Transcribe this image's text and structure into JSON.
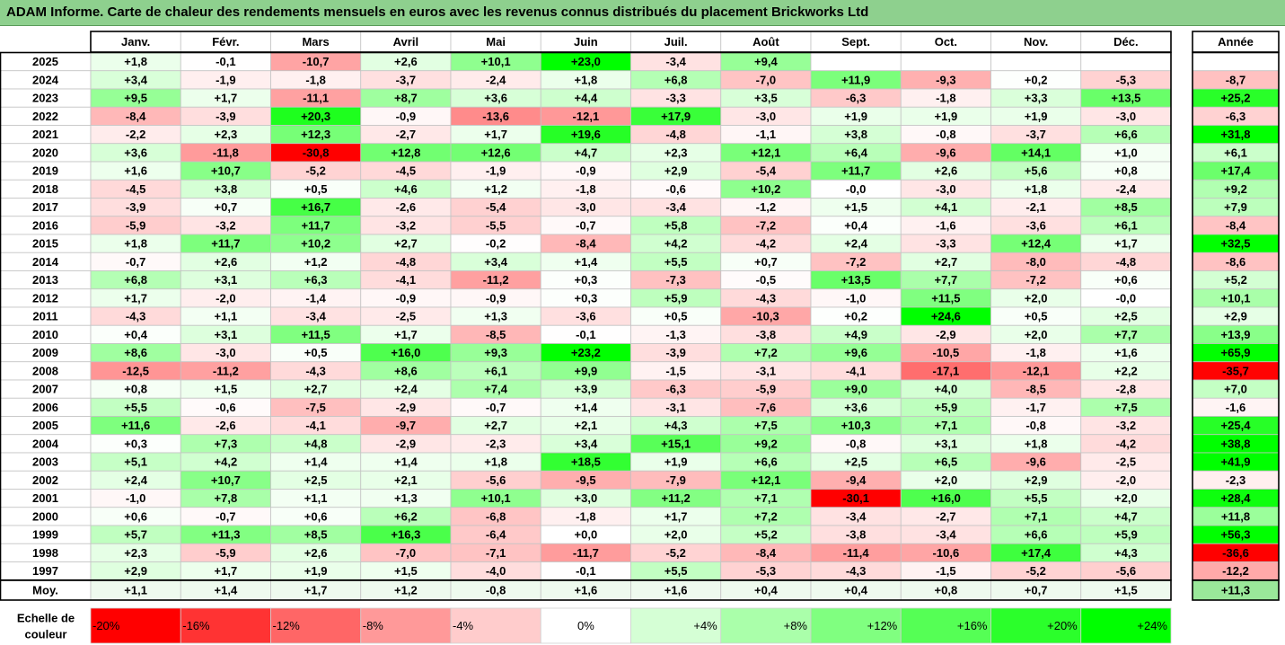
{
  "title": "ADAM Informe. Carte de chaleur des rendements mensuels en euros avec les revenus connus distribués du placement Brickworks Ltd",
  "chart_data": {
    "type": "heatmap",
    "months": [
      "Janv.",
      "Févr.",
      "Mars",
      "Avril",
      "Mai",
      "Juin",
      "Juil.",
      "Août",
      "Sept.",
      "Oct.",
      "Nov.",
      "Déc."
    ],
    "annual_header": "Année",
    "rows": [
      {
        "year": "2025",
        "values": [
          "+1,8",
          "-0,1",
          "-10,7",
          "+2,6",
          "+10,1",
          "+23,0",
          "-3,4",
          "+9,4",
          "",
          "",
          "",
          ""
        ],
        "annual": ""
      },
      {
        "year": "2024",
        "values": [
          "+3,4",
          "-1,9",
          "-1,8",
          "-3,7",
          "-2,4",
          "+1,8",
          "+6,8",
          "-7,0",
          "+11,9",
          "-9,3",
          "+0,2",
          "-5,3"
        ],
        "annual": "-8,7"
      },
      {
        "year": "2023",
        "values": [
          "+9,5",
          "+1,7",
          "-11,1",
          "+8,7",
          "+3,6",
          "+4,4",
          "-3,3",
          "+3,5",
          "-6,3",
          "-1,8",
          "+3,3",
          "+13,5"
        ],
        "annual": "+25,2"
      },
      {
        "year": "2022",
        "values": [
          "-8,4",
          "-3,9",
          "+20,3",
          "-0,9",
          "-13,6",
          "-12,1",
          "+17,9",
          "-3,0",
          "+1,9",
          "+1,9",
          "+1,9",
          "-3,0"
        ],
        "annual": "-6,3"
      },
      {
        "year": "2021",
        "values": [
          "-2,2",
          "+2,3",
          "+12,3",
          "-2,7",
          "+1,7",
          "+19,6",
          "-4,8",
          "-1,1",
          "+3,8",
          "-0,8",
          "-3,7",
          "+6,6"
        ],
        "annual": "+31,8"
      },
      {
        "year": "2020",
        "values": [
          "+3,6",
          "-11,8",
          "-30,8",
          "+12,8",
          "+12,6",
          "+4,7",
          "+2,3",
          "+12,1",
          "+6,4",
          "-9,6",
          "+14,1",
          "+1,0"
        ],
        "annual": "+6,1"
      },
      {
        "year": "2019",
        "values": [
          "+1,6",
          "+10,7",
          "-5,2",
          "-4,5",
          "-1,9",
          "-0,9",
          "+2,9",
          "-5,4",
          "+11,7",
          "+2,6",
          "+5,6",
          "+0,8"
        ],
        "annual": "+17,4"
      },
      {
        "year": "2018",
        "values": [
          "-4,5",
          "+3,8",
          "+0,5",
          "+4,6",
          "+1,2",
          "-1,8",
          "-0,6",
          "+10,2",
          "-0,0",
          "-3,0",
          "+1,8",
          "-2,4"
        ],
        "annual": "+9,2"
      },
      {
        "year": "2017",
        "values": [
          "-3,9",
          "+0,7",
          "+16,7",
          "-2,6",
          "-5,4",
          "-3,0",
          "-3,4",
          "-1,2",
          "+1,5",
          "+4,1",
          "-2,1",
          "+8,5"
        ],
        "annual": "+7,9"
      },
      {
        "year": "2016",
        "values": [
          "-5,9",
          "-3,2",
          "+11,7",
          "-3,2",
          "-5,5",
          "-0,7",
          "+5,8",
          "-7,2",
          "+0,4",
          "-1,6",
          "-3,6",
          "+6,1"
        ],
        "annual": "-8,4"
      },
      {
        "year": "2015",
        "values": [
          "+1,8",
          "+11,7",
          "+10,2",
          "+2,7",
          "-0,2",
          "-8,4",
          "+4,2",
          "-4,2",
          "+2,4",
          "-3,3",
          "+12,4",
          "+1,7"
        ],
        "annual": "+32,5"
      },
      {
        "year": "2014",
        "values": [
          "-0,7",
          "+2,6",
          "+1,2",
          "-4,8",
          "+3,4",
          "+1,4",
          "+5,5",
          "+0,7",
          "-7,2",
          "+2,7",
          "-8,0",
          "-4,8"
        ],
        "annual": "-8,6"
      },
      {
        "year": "2013",
        "values": [
          "+6,8",
          "+3,1",
          "+6,3",
          "-4,1",
          "-11,2",
          "+0,3",
          "-7,3",
          "-0,5",
          "+13,5",
          "+7,7",
          "-7,2",
          "+0,6"
        ],
        "annual": "+5,2"
      },
      {
        "year": "2012",
        "values": [
          "+1,7",
          "-2,0",
          "-1,4",
          "-0,9",
          "-0,9",
          "+0,3",
          "+5,9",
          "-4,3",
          "-1,0",
          "+11,5",
          "+2,0",
          "-0,0"
        ],
        "annual": "+10,1"
      },
      {
        "year": "2011",
        "values": [
          "-4,3",
          "+1,1",
          "-3,4",
          "-2,5",
          "+1,3",
          "-3,6",
          "+0,5",
          "-10,3",
          "+0,2",
          "+24,6",
          "+0,5",
          "+2,5"
        ],
        "annual": "+2,9"
      },
      {
        "year": "2010",
        "values": [
          "+0,4",
          "+3,1",
          "+11,5",
          "+1,7",
          "-8,5",
          "-0,1",
          "-1,3",
          "-3,8",
          "+4,9",
          "-2,9",
          "+2,0",
          "+7,7"
        ],
        "annual": "+13,9"
      },
      {
        "year": "2009",
        "values": [
          "+8,6",
          "-3,0",
          "+0,5",
          "+16,0",
          "+9,3",
          "+23,2",
          "-3,9",
          "+7,2",
          "+9,6",
          "-10,5",
          "-1,8",
          "+1,6"
        ],
        "annual": "+65,9"
      },
      {
        "year": "2008",
        "values": [
          "-12,5",
          "-11,2",
          "-4,3",
          "+8,6",
          "+6,1",
          "+9,9",
          "-1,5",
          "-3,1",
          "-4,1",
          "-17,1",
          "-12,1",
          "+2,2"
        ],
        "annual": "-35,7"
      },
      {
        "year": "2007",
        "values": [
          "+0,8",
          "+1,5",
          "+2,7",
          "+2,4",
          "+7,4",
          "+3,9",
          "-6,3",
          "-5,9",
          "+9,0",
          "+4,0",
          "-8,5",
          "-2,8"
        ],
        "annual": "+7,0"
      },
      {
        "year": "2006",
        "values": [
          "+5,5",
          "-0,6",
          "-7,5",
          "-2,9",
          "-0,7",
          "+1,4",
          "-3,1",
          "-7,6",
          "+3,6",
          "+5,9",
          "-1,7",
          "+7,5"
        ],
        "annual": "-1,6"
      },
      {
        "year": "2005",
        "values": [
          "+11,6",
          "-2,6",
          "-4,1",
          "-9,7",
          "+2,7",
          "+2,1",
          "+4,3",
          "+7,5",
          "+10,3",
          "+7,1",
          "-0,8",
          "-3,2"
        ],
        "annual": "+25,4"
      },
      {
        "year": "2004",
        "values": [
          "+0,3",
          "+7,3",
          "+4,8",
          "-2,9",
          "-2,3",
          "+3,4",
          "+15,1",
          "+9,2",
          "-0,8",
          "+3,1",
          "+1,8",
          "-4,2"
        ],
        "annual": "+38,8"
      },
      {
        "year": "2003",
        "values": [
          "+5,1",
          "+4,2",
          "+1,4",
          "+1,4",
          "+1,8",
          "+18,5",
          "+1,9",
          "+6,6",
          "+2,5",
          "+6,5",
          "-9,6",
          "-2,5"
        ],
        "annual": "+41,9"
      },
      {
        "year": "2002",
        "values": [
          "+2,4",
          "+10,7",
          "+2,5",
          "+2,1",
          "-5,6",
          "-9,5",
          "-7,9",
          "+12,1",
          "-9,4",
          "+2,0",
          "+2,9",
          "-2,0"
        ],
        "annual": "-2,3"
      },
      {
        "year": "2001",
        "values": [
          "-1,0",
          "+7,8",
          "+1,1",
          "+1,3",
          "+10,1",
          "+3,0",
          "+11,2",
          "+7,1",
          "-30,1",
          "+16,0",
          "+5,5",
          "+2,0"
        ],
        "annual": "+28,4"
      },
      {
        "year": "2000",
        "values": [
          "+0,6",
          "-0,7",
          "+0,6",
          "+6,2",
          "-6,8",
          "-1,8",
          "+1,7",
          "+7,2",
          "-3,4",
          "-2,7",
          "+7,1",
          "+4,7"
        ],
        "annual": "+11,8"
      },
      {
        "year": "1999",
        "values": [
          "+5,7",
          "+11,3",
          "+8,5",
          "+16,3",
          "-6,4",
          "+0,0",
          "+2,0",
          "+5,2",
          "-3,8",
          "-3,4",
          "+6,6",
          "+5,9"
        ],
        "annual": "+56,3"
      },
      {
        "year": "1998",
        "values": [
          "+2,3",
          "-5,9",
          "+2,6",
          "-7,0",
          "-7,1",
          "-11,7",
          "-5,2",
          "-8,4",
          "-11,4",
          "-10,6",
          "+17,4",
          "+4,3"
        ],
        "annual": "-36,6"
      },
      {
        "year": "1997",
        "values": [
          "+2,9",
          "+1,7",
          "+1,9",
          "+1,5",
          "-4,0",
          "-0,1",
          "+5,5",
          "-5,3",
          "-4,3",
          "-1,5",
          "-5,2",
          "-5,6"
        ],
        "annual": "-12,2"
      }
    ],
    "average": {
      "label": "Moy.",
      "values": [
        "+1,1",
        "+1,4",
        "+1,7",
        "+1,2",
        "-0,8",
        "+1,6",
        "+1,6",
        "+0,4",
        "+0,4",
        "+0,8",
        "+0,7",
        "+1,5"
      ],
      "annual": "+11,3"
    },
    "color_scale": {
      "label_line1": "Echelle de",
      "label_line2": "couleur",
      "steps": [
        "-20%",
        "-16%",
        "-12%",
        "-8%",
        "-4%",
        "0%",
        "+4%",
        "+8%",
        "+12%",
        "+16%",
        "+20%",
        "+24%"
      ],
      "negative_color": "#ff0000",
      "positive_color": "#00ff00",
      "neutral_color": "#ffffff"
    }
  }
}
